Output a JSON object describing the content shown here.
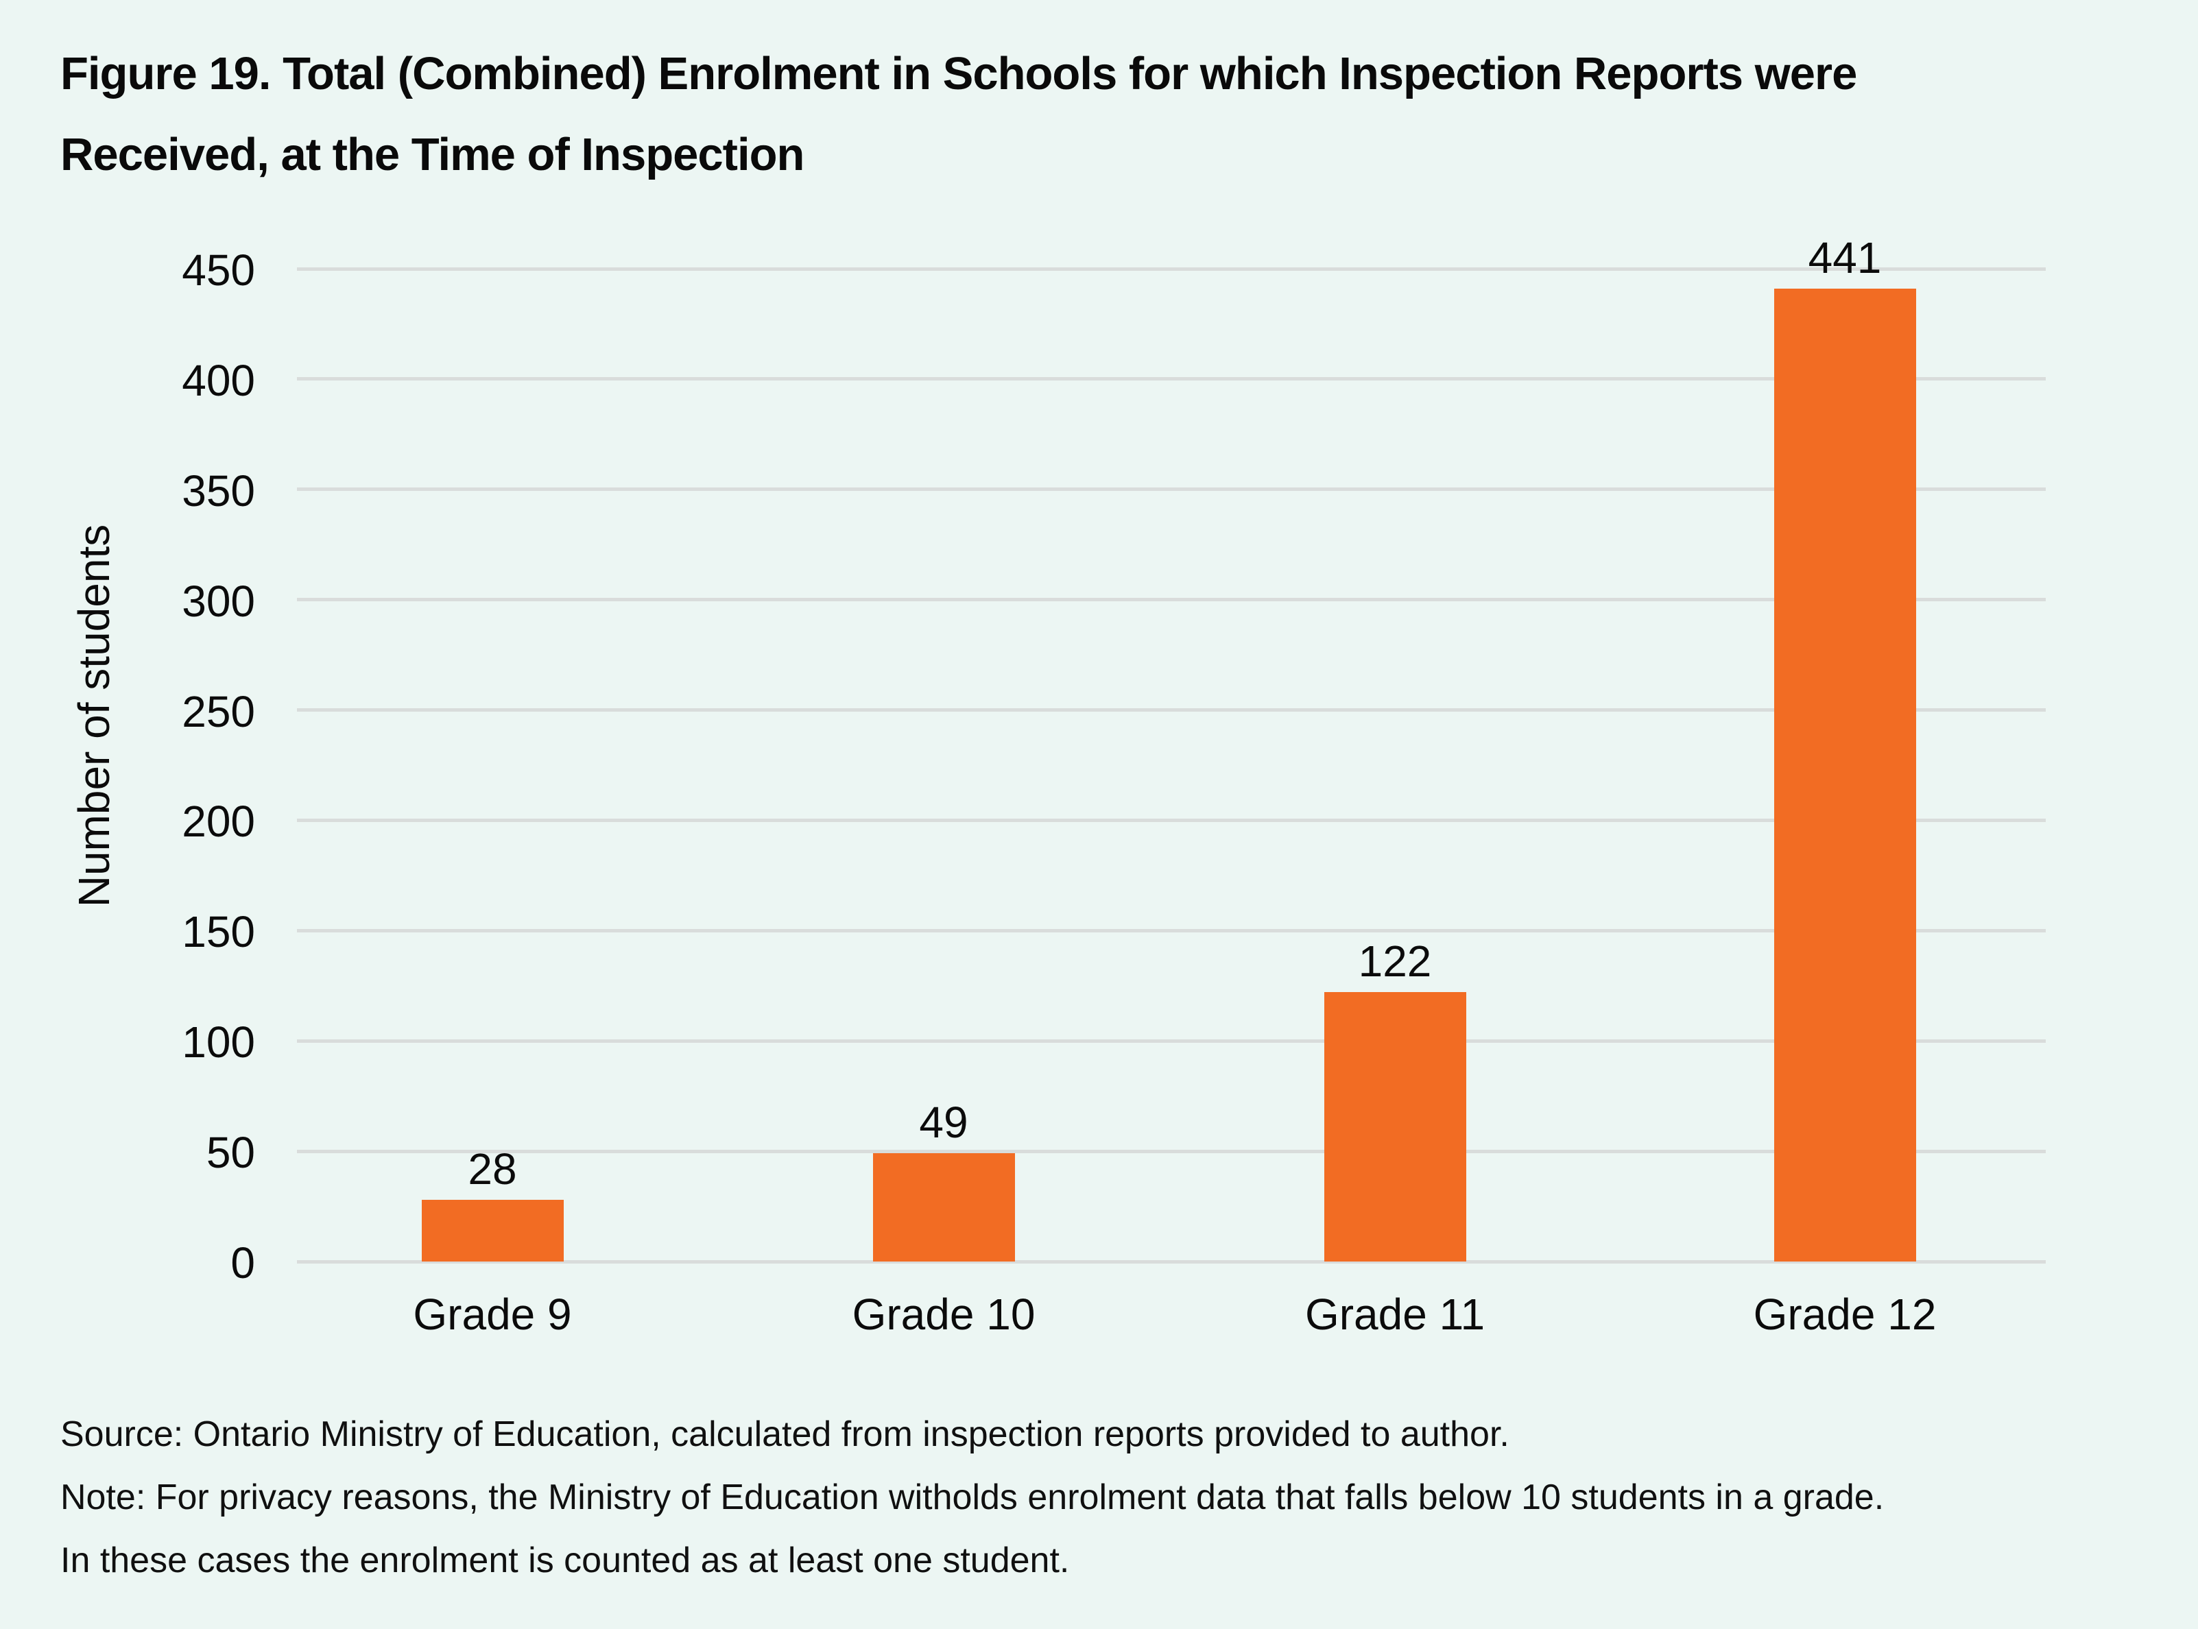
{
  "figure": {
    "title_lines": [
      "Figure 19. Total (Combined) Enrolment in Schools for which Inspection Reports were",
      "Received, at the Time of Inspection"
    ],
    "footnote_lines": [
      "Source: Ontario Ministry of Education, calculated from inspection reports provided to author.",
      "Note: For privacy reasons, the Ministry of Education witholds enrolment data that falls below 10 students in a grade.",
      "In these cases the enrolment is counted as at least one student."
    ]
  },
  "colors": {
    "background": "#ECF6F3",
    "bar": "#F26C23",
    "gridline": "#D9DCDB",
    "text": "#0B0B0B"
  },
  "chart_data": {
    "type": "bar",
    "title": "Figure 19. Total (Combined) Enrolment in Schools for which Inspection Reports were Received, at the Time of Inspection",
    "categories": [
      "Grade 9",
      "Grade 10",
      "Grade 11",
      "Grade 12"
    ],
    "values": [
      28,
      49,
      122,
      441
    ],
    "value_labels": [
      "28",
      "49",
      "122",
      "441"
    ],
    "xlabel": "",
    "ylabel": "Number of students",
    "ylim": [
      0,
      450
    ],
    "yticks": [
      0,
      50,
      100,
      150,
      200,
      250,
      300,
      350,
      400,
      450
    ],
    "grid": "horizontal",
    "legend": "none",
    "bar_color": "#F26C23"
  }
}
